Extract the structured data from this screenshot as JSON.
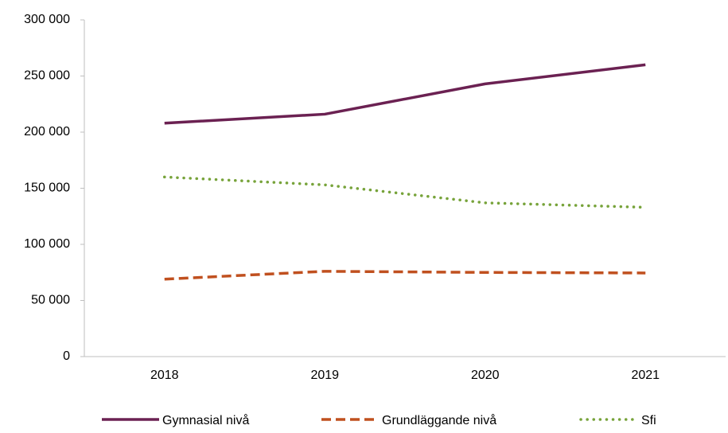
{
  "chart_data": {
    "type": "line",
    "categories": [
      "2018",
      "2019",
      "2020",
      "2021"
    ],
    "series": [
      {
        "name": "Gymnasial nivå",
        "color": "#6b2152",
        "style": "solid",
        "values": [
          208000,
          216000,
          243000,
          260000
        ]
      },
      {
        "name": "Grundläggande nivå",
        "color": "#c0501f",
        "style": "dashed",
        "values": [
          69000,
          76000,
          75000,
          74500
        ]
      },
      {
        "name": "Sfi",
        "color": "#77a33a",
        "style": "dotted",
        "values": [
          160000,
          153000,
          137000,
          133000
        ]
      }
    ],
    "ylim": [
      0,
      300000
    ],
    "yticks": [
      {
        "value": 0,
        "label": "0"
      },
      {
        "value": 50000,
        "label": "50 000"
      },
      {
        "value": 100000,
        "label": "100 000"
      },
      {
        "value": 150000,
        "label": "150 000"
      },
      {
        "value": 200000,
        "label": "200 000"
      },
      {
        "value": 250000,
        "label": "250 000"
      },
      {
        "value": 300000,
        "label": "300 000"
      }
    ],
    "grid": false,
    "legend": "bottom"
  }
}
